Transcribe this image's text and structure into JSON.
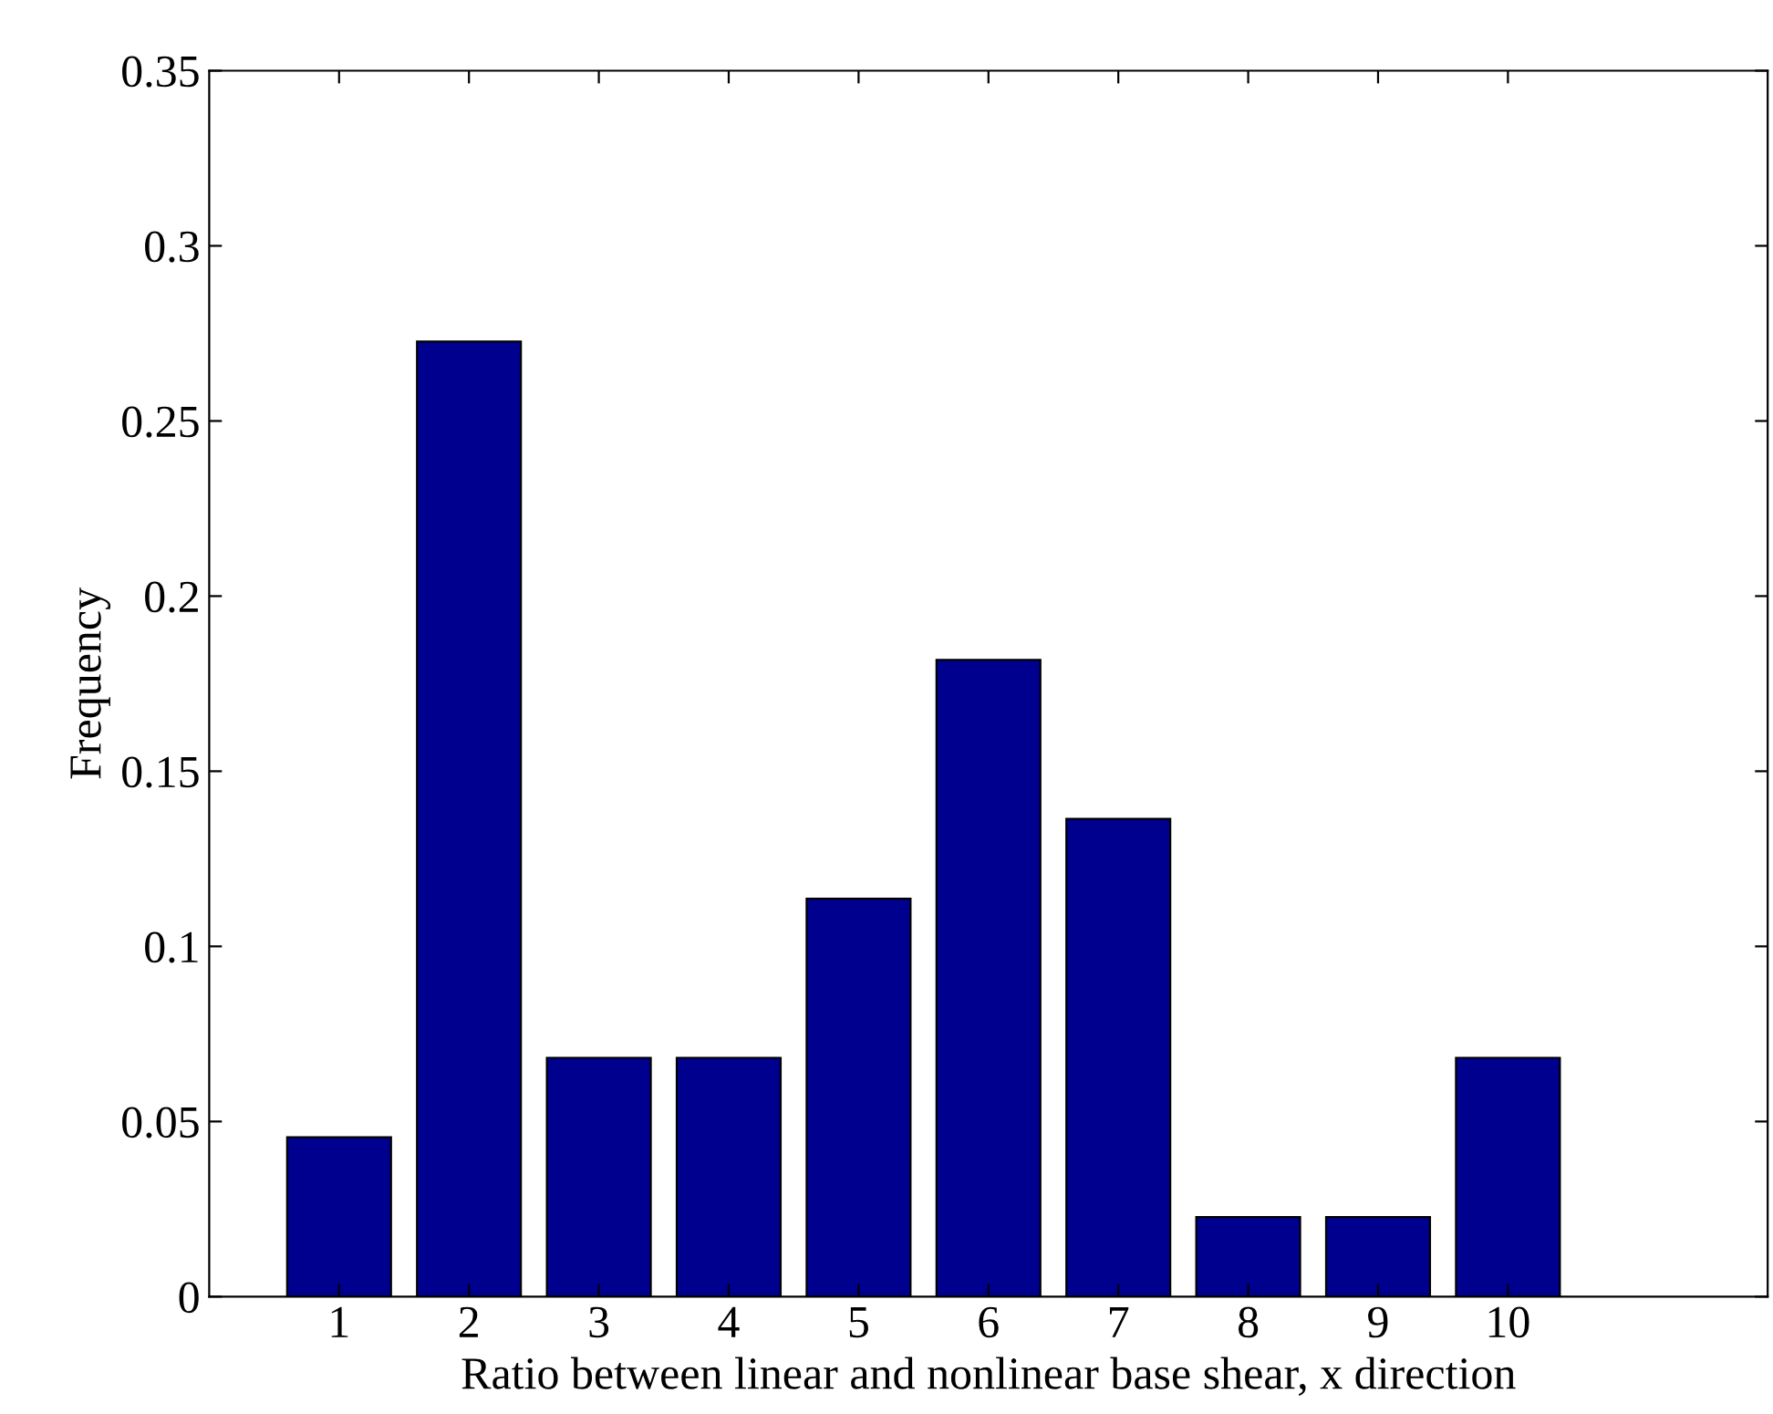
{
  "chart_data": {
    "type": "bar",
    "xlabel": "Ratio between linear and nonlinear base shear, x direction",
    "ylabel": "Frequency",
    "x": [
      1,
      2,
      3,
      4,
      5,
      6,
      7,
      8,
      9,
      10
    ],
    "values": [
      0.0455,
      0.2727,
      0.0682,
      0.0682,
      0.1136,
      0.1818,
      0.1364,
      0.0227,
      0.0227,
      0.0682
    ],
    "color": "#00008f",
    "xlim": [
      0,
      12
    ],
    "xticks": [
      1,
      2,
      3,
      4,
      5,
      6,
      7,
      8,
      9,
      10
    ],
    "ylim": [
      0,
      0.35
    ],
    "yticks": [
      0,
      0.05,
      0.1,
      0.15,
      0.2,
      0.25,
      0.3,
      0.35
    ],
    "grid": false
  }
}
